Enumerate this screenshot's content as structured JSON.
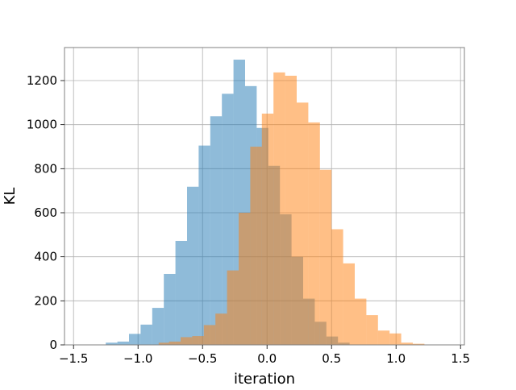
{
  "chart_data": {
    "type": "bar",
    "title": "",
    "xlabel": "iteration",
    "ylabel": "KL",
    "xlim": [
      -1.57,
      1.53
    ],
    "ylim": [
      0,
      1350
    ],
    "grid": true,
    "x_ticks": [
      -1.5,
      -1.0,
      -0.5,
      0.0,
      0.5,
      1.0,
      1.5
    ],
    "x_tick_labels": [
      "−1.5",
      "−1.0",
      "−0.5",
      "0.0",
      "0.5",
      "1.0",
      "1.5"
    ],
    "y_ticks": [
      0,
      200,
      400,
      600,
      800,
      1000,
      1200
    ],
    "y_tick_labels": [
      "0",
      "200",
      "400",
      "600",
      "800",
      "1000",
      "1200"
    ],
    "series": [
      {
        "color": "#1f77b4",
        "bins": [
          [
            -1.25,
            -1.16,
            10
          ],
          [
            -1.16,
            -1.07,
            15
          ],
          [
            -1.07,
            -0.98,
            50
          ],
          [
            -0.98,
            -0.89,
            92
          ],
          [
            -0.89,
            -0.8,
            168
          ],
          [
            -0.8,
            -0.71,
            322
          ],
          [
            -0.71,
            -0.62,
            472
          ],
          [
            -0.62,
            -0.53,
            718
          ],
          [
            -0.53,
            -0.44,
            905
          ],
          [
            -0.44,
            -0.35,
            1038
          ],
          [
            -0.35,
            -0.26,
            1140
          ],
          [
            -0.26,
            -0.17,
            1295
          ],
          [
            -0.17,
            -0.08,
            1175
          ],
          [
            -0.08,
            0.01,
            985
          ],
          [
            0.01,
            0.1,
            813
          ],
          [
            0.1,
            0.19,
            593
          ],
          [
            0.19,
            0.28,
            400
          ],
          [
            0.28,
            0.37,
            210
          ],
          [
            0.37,
            0.46,
            105
          ],
          [
            0.46,
            0.55,
            38
          ],
          [
            0.55,
            0.64,
            10
          ]
        ]
      },
      {
        "color": "#ff7f0e",
        "bins": [
          [
            -0.84,
            -0.76,
            10
          ],
          [
            -0.76,
            -0.67,
            15
          ],
          [
            -0.67,
            -0.58,
            35
          ],
          [
            -0.58,
            -0.49,
            40
          ],
          [
            -0.49,
            -0.4,
            90
          ],
          [
            -0.4,
            -0.31,
            142
          ],
          [
            -0.31,
            -0.22,
            338
          ],
          [
            -0.22,
            -0.13,
            600
          ],
          [
            -0.13,
            -0.04,
            900
          ],
          [
            -0.04,
            0.05,
            1050
          ],
          [
            0.05,
            0.14,
            1237
          ],
          [
            0.14,
            0.23,
            1222
          ],
          [
            0.23,
            0.32,
            1100
          ],
          [
            0.32,
            0.41,
            1010
          ],
          [
            0.41,
            0.5,
            795
          ],
          [
            0.5,
            0.59,
            525
          ],
          [
            0.59,
            0.68,
            370
          ],
          [
            0.68,
            0.77,
            210
          ],
          [
            0.77,
            0.86,
            135
          ],
          [
            0.86,
            0.95,
            65
          ],
          [
            0.95,
            1.04,
            52
          ],
          [
            1.04,
            1.13,
            10
          ],
          [
            1.13,
            1.22,
            5
          ]
        ]
      }
    ]
  }
}
